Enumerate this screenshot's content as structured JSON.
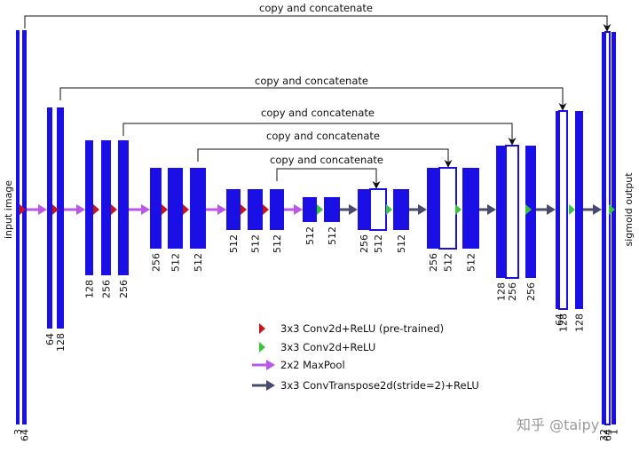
{
  "colors": {
    "block": "#1a10e6",
    "conv_pretrained": "#c4151c",
    "conv": "#39c43b",
    "maxpool": "#b958e8",
    "deconv": "#474c6e",
    "line": "#111111"
  },
  "labels": {
    "input": "input image",
    "output": "sigmoid output",
    "copy": "copy and concatenate",
    "watermark": "知乎 @taipy"
  },
  "legend": [
    {
      "icon": "red-triangle-icon",
      "text": "3x3 Conv2d+ReLU (pre-trained)"
    },
    {
      "icon": "green-triangle-icon",
      "text": "3x3 Conv2d+ReLU"
    },
    {
      "icon": "purple-arrow-icon",
      "text": "2x2 MaxPool"
    },
    {
      "icon": "dark-arrow-icon",
      "text": "3x3 ConvTranspose2d(stride=2)+ReLU"
    }
  ],
  "channels": {
    "level1": [
      "3",
      "64"
    ],
    "level2": [
      "64",
      "128"
    ],
    "level3": [
      "128",
      "256",
      "256"
    ],
    "level4": [
      "256",
      "512",
      "512"
    ],
    "level5": [
      "512",
      "512",
      "512"
    ],
    "bottom": [
      "512",
      "512"
    ],
    "up5": [
      "256",
      "512",
      "512"
    ],
    "up4": [
      "256",
      "512",
      "512"
    ],
    "up3": [
      "128",
      "256",
      "256"
    ],
    "up2": [
      "64",
      "128",
      "128"
    ],
    "up1": [
      "32",
      "64",
      "1"
    ]
  }
}
